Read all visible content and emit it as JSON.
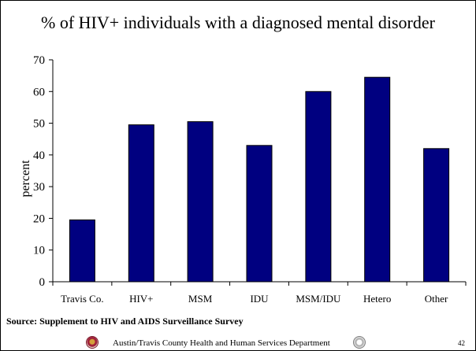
{
  "chart_data": {
    "type": "bar",
    "title": "% of HIV+ individuals with a diagnosed mental disorder",
    "xlabel": "",
    "ylabel": "percent",
    "categories": [
      "Travis Co.",
      "HIV+",
      "MSM",
      "IDU",
      "MSM/IDU",
      "Hetero",
      "Other"
    ],
    "values": [
      19.5,
      49.5,
      50.5,
      43,
      60,
      64.5,
      42
    ],
    "ylim": [
      0,
      70
    ],
    "yticks": [
      0,
      10,
      20,
      30,
      40,
      50,
      60,
      70
    ],
    "grid": false,
    "legend": "none",
    "bar_color": "#000080"
  },
  "source": "Source: Supplement to HIV and AIDS Surveillance Survey",
  "footer": {
    "department": "Austin/Travis County Health and Human Services Department",
    "page_number": "42",
    "left_logo_icon": "county-seal-icon",
    "right_logo_icon": "department-seal-icon"
  }
}
